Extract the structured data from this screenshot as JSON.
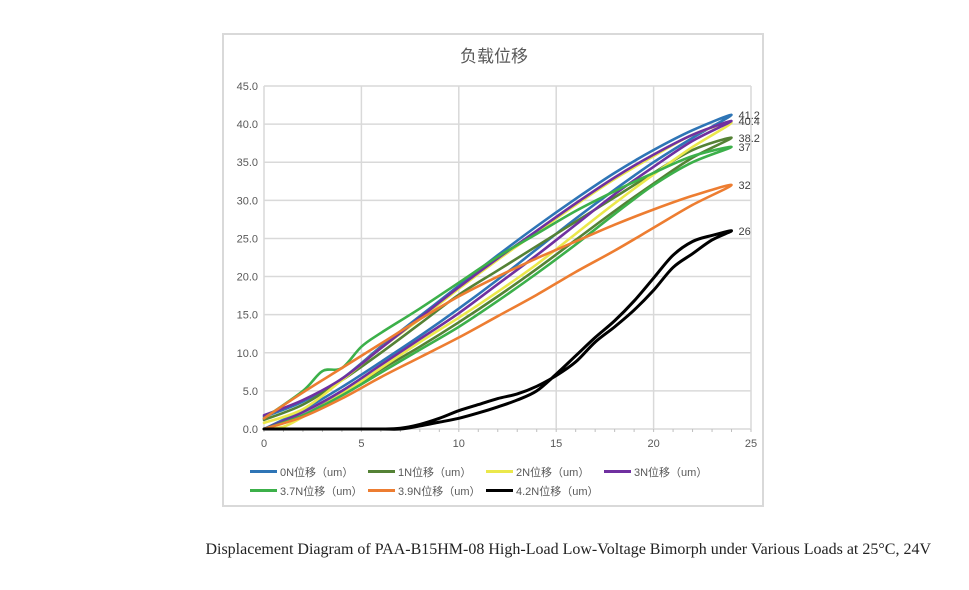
{
  "caption": "Displacement Diagram of PAA-B15HM-08 High-Load Low-Voltage Bimorph under Various Loads at 25°C, 24V",
  "chart_data": {
    "type": "line",
    "title": "负载位移",
    "xlabel": "",
    "ylabel": "",
    "xlim": [
      0,
      25
    ],
    "ylim": [
      0,
      45
    ],
    "x_ticks": [
      "0",
      "5",
      "10",
      "15",
      "20",
      "25"
    ],
    "y_ticks": [
      "0.0",
      "5.0",
      "10.0",
      "15.0",
      "20.0",
      "25.0",
      "30.0",
      "35.0",
      "40.0",
      "45.0"
    ],
    "grid": true,
    "legend_position": "bottom",
    "series": [
      {
        "name": "0N位移（um）",
        "color": "#2e75b6",
        "end_label": "41.2",
        "x": [
          0,
          2,
          4,
          6,
          8,
          10,
          12,
          14,
          16,
          18,
          20,
          22,
          24,
          22,
          20,
          18,
          16,
          14,
          12,
          10,
          8,
          6,
          4,
          2,
          0
        ],
        "y": [
          0,
          2.5,
          5.5,
          8.8,
          12.2,
          15.8,
          19.6,
          23.6,
          27.6,
          31.4,
          35,
          38.2,
          41.2,
          39.2,
          36.6,
          33.6,
          30.2,
          26.6,
          22.8,
          18.8,
          14.8,
          10.8,
          6.6,
          3.6,
          1.6
        ]
      },
      {
        "name": "1N位移（um）",
        "color": "#548235",
        "end_label": "38.2",
        "x": [
          0,
          2,
          4,
          6,
          8,
          10,
          12,
          14,
          16,
          18,
          20,
          22,
          24,
          22,
          20,
          18,
          16,
          14,
          12,
          10,
          8,
          6,
          4,
          2,
          0
        ],
        "y": [
          0,
          1.8,
          4.6,
          7.8,
          10.8,
          14,
          17.4,
          21,
          24.8,
          28.6,
          32.2,
          35.6,
          38.2,
          36.6,
          33.6,
          30.4,
          27.2,
          24,
          20.8,
          17.6,
          13.8,
          10,
          6.4,
          3.2,
          1.2
        ]
      },
      {
        "name": "2N位移（um）",
        "color": "#ebe84b",
        "end_label": "",
        "x": [
          0,
          1,
          2,
          4,
          6,
          8,
          10,
          12,
          14,
          16,
          18,
          20,
          22,
          24,
          22,
          20,
          18,
          16,
          14,
          12,
          10,
          8,
          6,
          4,
          2,
          0
        ],
        "y": [
          0,
          0.3,
          1.6,
          4.6,
          8,
          11.4,
          14.6,
          18,
          21.6,
          25.6,
          29.6,
          33.4,
          37,
          40.2,
          38.6,
          35.8,
          32.8,
          29.4,
          25.8,
          22.2,
          18.4,
          14.4,
          10.6,
          6.4,
          2.6,
          0.8
        ]
      },
      {
        "name": "3N位移（um）",
        "color": "#7030a0",
        "end_label": "40.4",
        "x": [
          0,
          2,
          4,
          6,
          8,
          10,
          12,
          14,
          16,
          18,
          20,
          22,
          24,
          22,
          20,
          18,
          16,
          14,
          12,
          10,
          8,
          6,
          4,
          2,
          0
        ],
        "y": [
          0,
          2.2,
          5,
          8.4,
          11.8,
          15.2,
          19,
          22.8,
          26.8,
          30.8,
          34.4,
          37.8,
          40.4,
          38.6,
          36,
          33,
          29.6,
          26,
          22.4,
          18.6,
          14.6,
          10.6,
          6.6,
          3.8,
          1.8
        ]
      },
      {
        "name": "3.7N位移（um）",
        "color": "#3cb04a",
        "end_label": "37",
        "x": [
          0,
          2,
          4,
          6,
          8,
          10,
          12,
          14,
          16,
          18,
          20,
          22,
          24,
          22,
          20,
          18,
          16,
          14,
          12,
          10,
          8,
          6,
          5,
          4,
          3,
          2,
          0
        ],
        "y": [
          0,
          1.8,
          4.4,
          7.4,
          10.4,
          13.4,
          16.8,
          20.4,
          24.2,
          28.2,
          32,
          35,
          37,
          35.8,
          33.6,
          31.2,
          28.6,
          25.6,
          22.6,
          19.2,
          15.8,
          12.6,
          10.8,
          8,
          7.6,
          5,
          1.4
        ]
      },
      {
        "name": "3.9N位移（um）",
        "color": "#ed7d31",
        "end_label": "32",
        "x": [
          0,
          2,
          4,
          6,
          8,
          10,
          12,
          14,
          16,
          18,
          20,
          22,
          24,
          22,
          20,
          18,
          16,
          14,
          12,
          10,
          8,
          6,
          4,
          2,
          0
        ],
        "y": [
          0,
          1.6,
          4,
          6.8,
          9.4,
          12,
          14.8,
          17.6,
          20.6,
          23.4,
          26.4,
          29.4,
          32,
          30.6,
          28.8,
          26.8,
          24.6,
          22.4,
          20,
          17.4,
          14.4,
          11.2,
          8,
          4.8,
          1.4
        ]
      },
      {
        "name": "4.2N位移（um）",
        "color": "#000000",
        "end_label": "26",
        "x": [
          0,
          2,
          4,
          6,
          7,
          8,
          9,
          10,
          11,
          12,
          13,
          14,
          15,
          16,
          17,
          18,
          19,
          20,
          21,
          22,
          23,
          24,
          23,
          22,
          21,
          20,
          19,
          18,
          17,
          16,
          15,
          14,
          13,
          12,
          11,
          10,
          9,
          8,
          7,
          6,
          4,
          2,
          0
        ],
        "y": [
          0,
          0,
          0,
          0,
          0,
          0.4,
          0.9,
          1.4,
          2.1,
          2.9,
          3.8,
          5,
          7.2,
          9.6,
          12,
          14.2,
          16.8,
          19.8,
          22.8,
          24.6,
          25.4,
          26,
          24.8,
          23,
          21.2,
          18.2,
          15.6,
          13.4,
          11.4,
          8.8,
          7,
          5.6,
          4.6,
          4,
          3.2,
          2.4,
          1.4,
          0.6,
          0.1,
          0,
          0,
          0,
          0
        ]
      }
    ]
  }
}
